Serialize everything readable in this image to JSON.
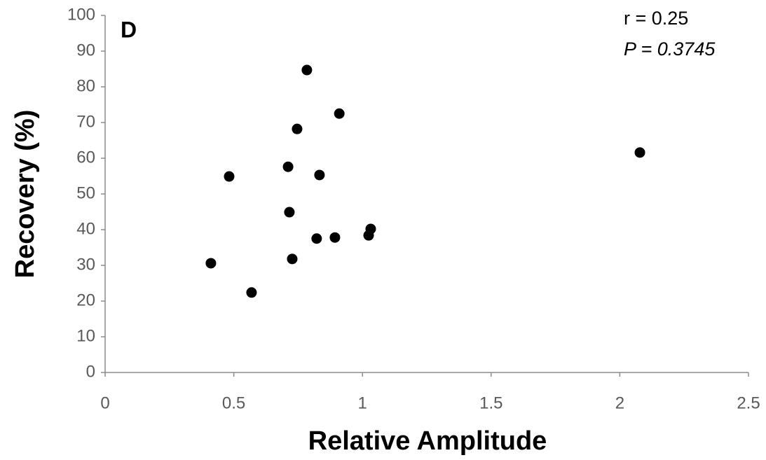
{
  "chart_data": {
    "type": "scatter",
    "panel_label": "D",
    "annotations": [
      "r = 0.25",
      "P = 0.3745"
    ],
    "x_label": "Relative Amplitude",
    "y_label": "Recovery (%)",
    "series": [
      {
        "color": "#000000",
        "x": [
          0.784,
          0.91,
          0.746,
          2.078,
          0.711,
          0.482,
          0.833,
          0.716,
          1.032,
          1.024,
          0.822,
          0.893,
          0.727,
          0.411,
          0.569
        ],
        "values": [
          84.7,
          72.5,
          68.2,
          61.6,
          57.6,
          54.9,
          55.3,
          44.9,
          40.2,
          38.4,
          37.5,
          37.8,
          31.8,
          30.6,
          22.4
        ]
      }
    ],
    "xlim": [
      0,
      2.5
    ],
    "xticks": [
      0,
      0.5,
      1,
      1.5,
      2,
      2.5
    ],
    "ylim": [
      0,
      100
    ],
    "yticks": [
      0,
      10,
      20,
      30,
      40,
      50,
      60,
      70,
      80,
      90,
      100
    ],
    "grid": false
  }
}
